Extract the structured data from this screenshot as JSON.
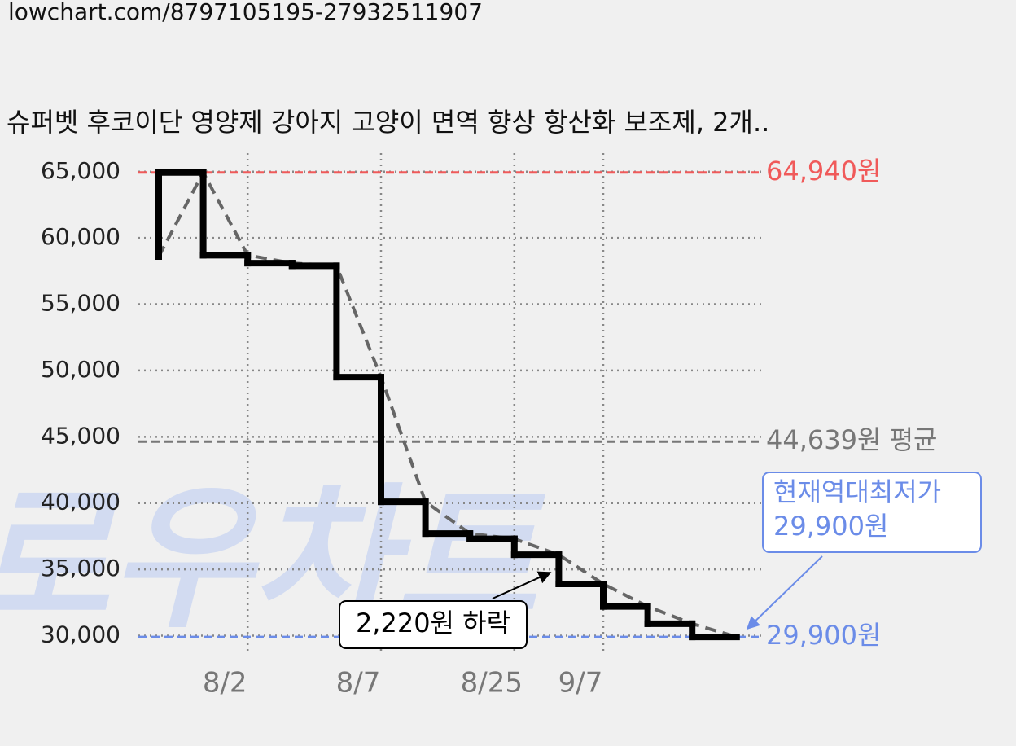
{
  "url": "lowchart.com/8797105195-27932511907",
  "watermark": "로우차트",
  "chart_data": {
    "type": "line",
    "title": "슈퍼벳 후코이단 영양제 강아지 고양이 면역 향상 항산화 보조제, 2개..",
    "categories": [
      null,
      null,
      "8/2",
      null,
      null,
      "8/7",
      null,
      null,
      "8/25",
      null,
      "9/7",
      null,
      null,
      null
    ],
    "values": [
      58600,
      64940,
      58700,
      58100,
      57900,
      49500,
      40100,
      37700,
      37300,
      36100,
      33900,
      32200,
      30900,
      29900
    ],
    "color": "#000000",
    "line_style": "step",
    "trend_color": "#666666",
    "ylim": [
      28800,
      66400
    ],
    "yticks": [
      {
        "value": 30000,
        "label": "30,000"
      },
      {
        "value": 35000,
        "label": "35,000"
      },
      {
        "value": 40000,
        "label": "40,000"
      },
      {
        "value": 45000,
        "label": "45,000"
      },
      {
        "value": 50000,
        "label": "50,000"
      },
      {
        "value": 55000,
        "label": "55,000"
      },
      {
        "value": 60000,
        "label": "60,000"
      },
      {
        "value": 65000,
        "label": "65,000"
      }
    ],
    "grid": true,
    "reference_lines": [
      {
        "value": 64940,
        "label": "64,940원",
        "color": "#f05a5a"
      },
      {
        "value": 44639,
        "label": "44,639원 평균",
        "color": "#777777"
      },
      {
        "value": 29900,
        "label": "29,900원",
        "color": "#6b8ce8"
      }
    ],
    "annotations": [
      {
        "text": "2,220원 하락"
      },
      {
        "text": [
          "현재역대최저가",
          "29,900원"
        ],
        "color": "#6b8ce8"
      }
    ]
  }
}
